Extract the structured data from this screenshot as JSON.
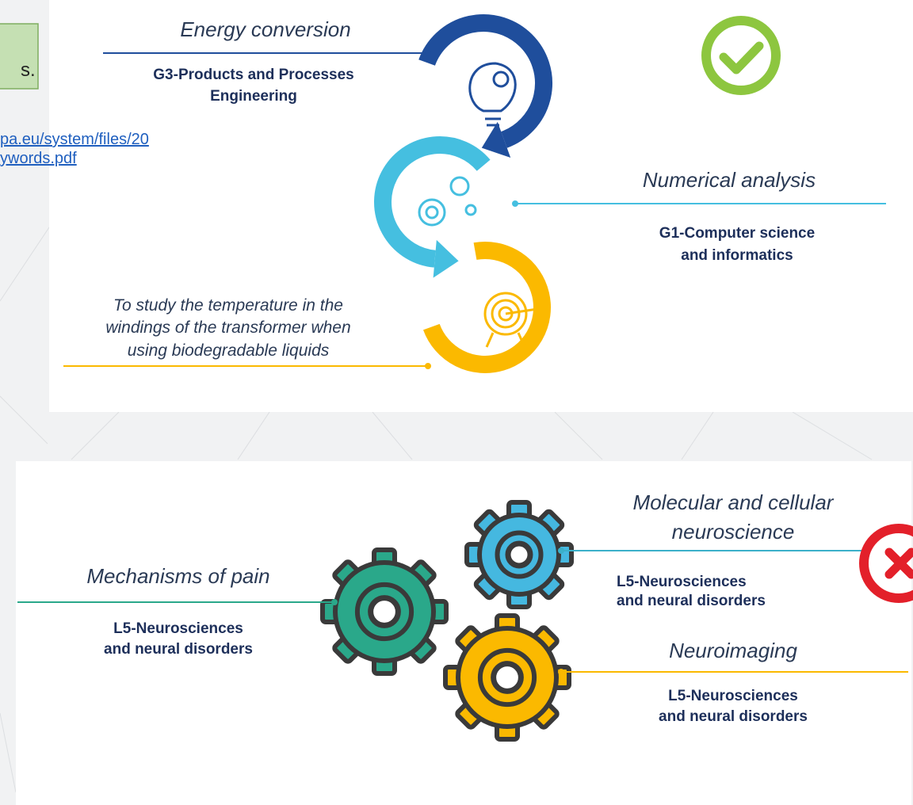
{
  "sidebar": {
    "box_text": "s.",
    "link_lines": [
      "pa.eu/system/files/20",
      "ywords.pdf"
    ]
  },
  "top_diagram": {
    "energy": {
      "title": "Energy conversion",
      "panel_lines": [
        "G3-Products and Processes",
        "Engineering"
      ]
    },
    "numerical": {
      "title": "Numerical analysis",
      "panel_lines": [
        "G1-Computer science",
        "and informatics"
      ]
    },
    "objective_lines": [
      "To study the temperature in the",
      "windings of the transformer when",
      "using biodegradable liquids"
    ]
  },
  "bottom_diagram": {
    "molecular": {
      "title_lines": [
        "Molecular and cellular",
        "neuroscience"
      ],
      "panel_lines": [
        "L5-Neurosciences",
        "and neural disorders"
      ]
    },
    "pain": {
      "title": "Mechanisms of pain",
      "panel_lines": [
        "L5-Neurosciences",
        "and neural disorders"
      ]
    },
    "neuroimaging": {
      "title": "Neuroimaging",
      "panel_lines": [
        "L5-Neurosciences",
        "and neural disorders"
      ]
    }
  }
}
